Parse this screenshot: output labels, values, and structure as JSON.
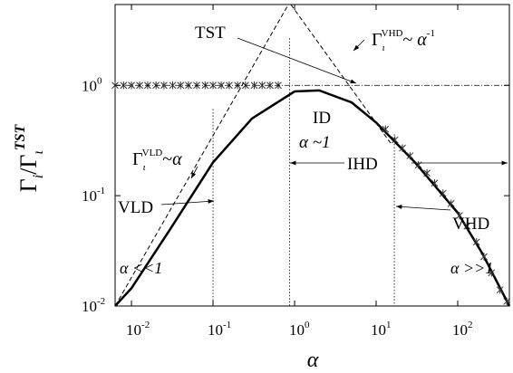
{
  "chart_data": {
    "type": "line",
    "xlabel": "α",
    "ylabel_parts": [
      "Γ",
      "i",
      "/Γ",
      "ι",
      "TST"
    ],
    "xscale": "log",
    "yscale": "log",
    "xlim": [
      0.0063,
      430
    ],
    "ylim": [
      0.01,
      5.4
    ],
    "xticks": [
      {
        "value": 0.01,
        "label": "10",
        "exponent": "-2"
      },
      {
        "value": 0.1,
        "label": "10",
        "exponent": "-1"
      },
      {
        "value": 1,
        "label": "10",
        "exponent": "0"
      },
      {
        "value": 10,
        "label": "10",
        "exponent": "1"
      },
      {
        "value": 100,
        "label": "10",
        "exponent": "2"
      }
    ],
    "yticks": [
      {
        "value": 0.01,
        "label": "10",
        "exponent": "-2"
      },
      {
        "value": 0.1,
        "label": "10",
        "exponent": "-1"
      },
      {
        "value": 1,
        "label": "10",
        "exponent": "0"
      }
    ],
    "series": [
      {
        "style": "solid",
        "color": "#000000",
        "x": [
          0.0063,
          0.01,
          0.03,
          0.1,
          0.3,
          1,
          2,
          5,
          10,
          30,
          100,
          200,
          430
        ],
        "values": [
          0.01,
          0.0145,
          0.05,
          0.2,
          0.5,
          0.88,
          0.9,
          0.7,
          0.46,
          0.2,
          0.07,
          0.03,
          0.01
        ]
      },
      {
        "style": "markers",
        "color": "#333333",
        "x": [
          0.0063,
          0.008,
          0.01,
          0.0126,
          0.0158,
          0.02,
          0.025,
          0.032,
          0.04,
          0.05,
          0.063,
          0.08,
          0.1,
          0.126,
          0.158,
          0.2,
          0.25,
          0.32,
          0.4,
          0.5,
          0.63,
          13,
          17,
          21,
          26,
          33,
          42,
          52,
          66,
          83,
          105,
          130,
          170,
          210,
          260,
          330,
          400
        ],
        "values": [
          1,
          1,
          1,
          1,
          1,
          1,
          1,
          1,
          1,
          1,
          1,
          1,
          1,
          1,
          1,
          1,
          1,
          1,
          1,
          1,
          1,
          0.4,
          0.32,
          0.27,
          0.23,
          0.19,
          0.16,
          0.13,
          0.105,
          0.085,
          0.066,
          0.053,
          0.038,
          0.028,
          0.02,
          0.014,
          0.011
        ]
      },
      {
        "style": "dashed",
        "color": "#000000",
        "x": [
          0.0063,
          0.84
        ],
        "values": [
          0.01,
          5.4
        ]
      },
      {
        "style": "dashed",
        "color": "#000000",
        "x": [
          0.9,
          15
        ],
        "values": [
          5.4,
          0.3
        ]
      },
      {
        "style": "dashdot",
        "color": "#000000",
        "x": [
          0.0063,
          430
        ],
        "values": [
          1,
          1
        ]
      }
    ],
    "vlines": [
      {
        "x": 0.1,
        "top": 0.61
      },
      {
        "x": 0.87,
        "top": 2.67
      },
      {
        "x": 16.7,
        "top": 0.36
      }
    ],
    "annotations": [
      {
        "parts": [
          "TST"
        ]
      },
      {
        "parts": [
          "Γ",
          "ι",
          "VHD",
          "~ ",
          "α",
          "-1"
        ]
      },
      {
        "parts": [
          "Γ",
          "ι",
          "VLD",
          "~",
          "α"
        ]
      },
      {
        "parts": [
          "ID"
        ]
      },
      {
        "parts": [
          "α ~1"
        ]
      },
      {
        "parts": [
          "IHD"
        ]
      },
      {
        "parts": [
          "VLD"
        ]
      },
      {
        "parts": [
          "VHD"
        ]
      },
      {
        "parts": [
          "α <<1"
        ]
      },
      {
        "parts": [
          "α >>1"
        ]
      }
    ]
  }
}
